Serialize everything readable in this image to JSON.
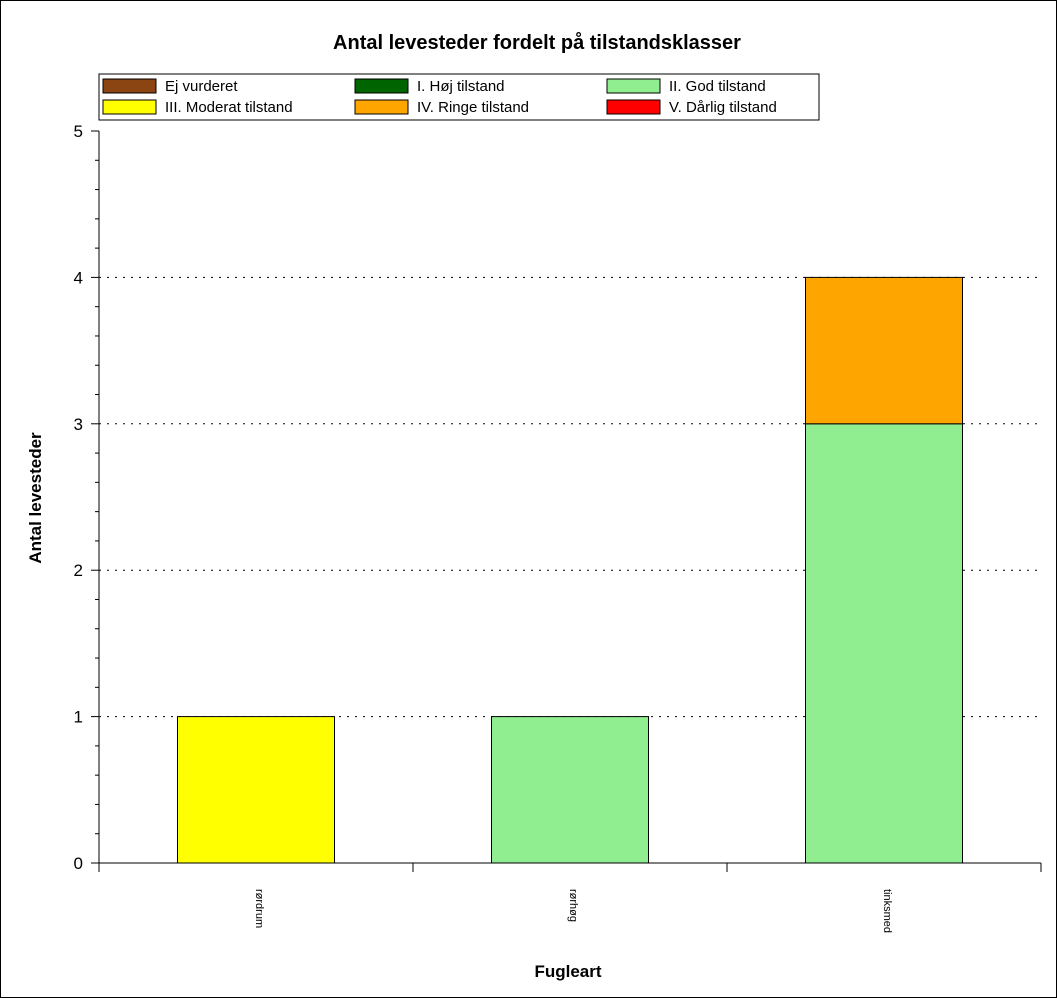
{
  "chart_data": {
    "type": "bar",
    "stacked": true,
    "title": "Antal levesteder fordelt på tilstandsklasser",
    "xlabel": "Fugleart",
    "ylabel": "Antal levesteder",
    "categories": [
      "rørdrum",
      "rørhøg",
      "tinksmed"
    ],
    "ylim": [
      0,
      5
    ],
    "yticks": [
      "0",
      "1",
      "2",
      "3",
      "4",
      "5"
    ],
    "grid": "horizontal-dotted",
    "legend_position": "top",
    "series": [
      {
        "name": "Ej vurderet",
        "color": "#8B4513",
        "values": [
          0,
          0,
          0
        ]
      },
      {
        "name": "I. Høj tilstand",
        "color": "#006400",
        "values": [
          0,
          0,
          0
        ]
      },
      {
        "name": "II. God tilstand",
        "color": "#90EE90",
        "values": [
          0,
          1,
          3
        ]
      },
      {
        "name": "III. Moderat tilstand",
        "color": "#FFFF00",
        "values": [
          1,
          0,
          0
        ]
      },
      {
        "name": "IV. Ringe tilstand",
        "color": "#FFA500",
        "values": [
          0,
          0,
          1
        ]
      },
      {
        "name": "V. Dårlig tilstand",
        "color": "#FF0000",
        "values": [
          0,
          0,
          0
        ]
      }
    ]
  }
}
